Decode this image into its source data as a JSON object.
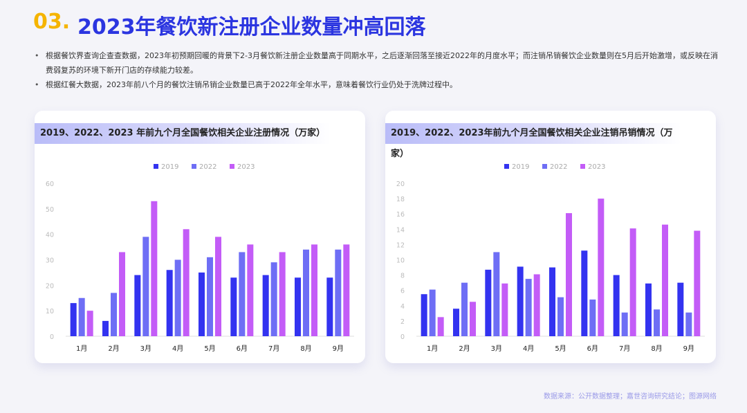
{
  "header": {
    "number": "03.",
    "title": "2023年餐饮新注册企业数量冲高回落"
  },
  "bullets": [
    "根据餐饮界查询企查查数据，2023年初预期回暖的背景下2-3月餐饮新注册企业数量高于同期水平，之后逐渐回落至接近2022年的月度水平；而注销吊销餐饮企业数量则在5月后开始激增，或反映在消费弱复苏的环境下新开门店的存续能力较差。",
    "根据红餐大数据，2023年前八个月的餐饮注销吊销企业数量已高于2022年全年水平，意味着餐饮行业仍处于洗牌过程中。"
  ],
  "source": "数据来源：公开数据整理；嘉世咨询研究结论；图源网络",
  "chart_data": [
    {
      "type": "bar",
      "title": "2019、2022、2023 年前九个月全国餐饮相关企业注册情况（万家）",
      "categories": [
        "1月",
        "2月",
        "3月",
        "4月",
        "5月",
        "6月",
        "7月",
        "8月",
        "9月"
      ],
      "ylim": [
        0,
        60
      ],
      "yticks": [
        0,
        10,
        20,
        30,
        40,
        50,
        60
      ],
      "legend_position": "top-center",
      "grid": false,
      "series": [
        {
          "name": "2019",
          "color": "#3333f0",
          "values": [
            13,
            6,
            24,
            26,
            25,
            23,
            24,
            23,
            23
          ]
        },
        {
          "name": "2022",
          "color": "#6e6ef5",
          "values": [
            15,
            17,
            39,
            30,
            31,
            33,
            29,
            34,
            34
          ]
        },
        {
          "name": "2023",
          "color": "#c35cf7",
          "values": [
            10,
            33,
            53,
            42,
            39,
            36,
            33,
            36,
            36
          ]
        }
      ]
    },
    {
      "type": "bar",
      "title": "2019、2022、2023年前九个月全国餐饮相关企业注销吊销情况（万家）",
      "categories": [
        "1月",
        "2月",
        "3月",
        "4月",
        "5月",
        "6月",
        "7月",
        "8月",
        "9月"
      ],
      "ylim": [
        0,
        20
      ],
      "yticks": [
        0,
        2,
        4,
        6,
        8,
        10,
        12,
        14,
        16,
        18,
        20
      ],
      "legend_position": "top-center",
      "grid": false,
      "series": [
        {
          "name": "2019",
          "color": "#3333f0",
          "values": [
            5.5,
            3.6,
            8.7,
            9.1,
            9.0,
            11.2,
            8.0,
            6.9,
            7.0
          ]
        },
        {
          "name": "2022",
          "color": "#6e6ef5",
          "values": [
            6.1,
            7.0,
            11.0,
            7.5,
            5.1,
            4.8,
            3.1,
            3.5,
            3.1
          ]
        },
        {
          "name": "2023",
          "color": "#c35cf7",
          "values": [
            2.5,
            4.5,
            6.9,
            8.1,
            16.1,
            18.0,
            14.1,
            14.6,
            13.8
          ]
        }
      ]
    }
  ]
}
